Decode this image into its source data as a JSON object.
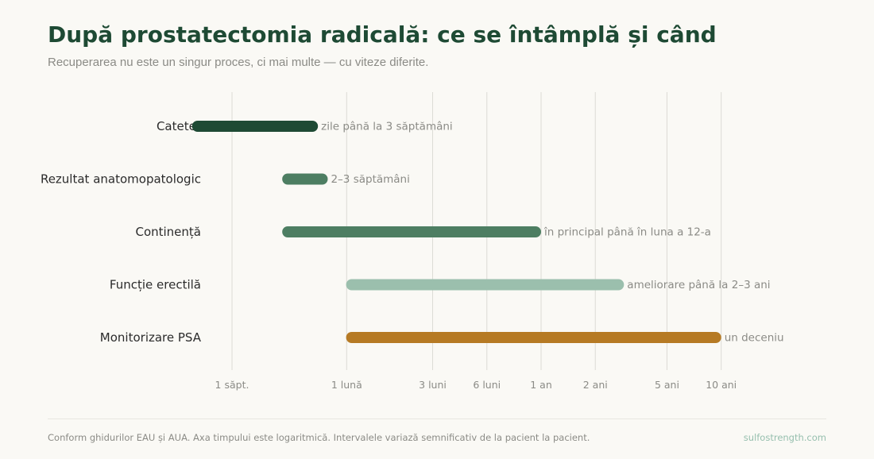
{
  "header": {
    "title": "După prostatectomia radicală: ce se întâmplă și când",
    "subtitle": "Recuperarea nu este un singur proces, ci mai multe — cu viteze diferite."
  },
  "footer": {
    "note": "Conform ghidurilor EAU și AUA. Axa timpului este logaritmică. Intervalele variază semnificativ de la pacient la pacient.",
    "brand": "sulfostrength.com"
  },
  "chart_data": {
    "type": "bar",
    "orientation": "horizontal-range",
    "x_scale": "log",
    "x_unit": "weeks",
    "xlim": [
      0.5,
      720
    ],
    "grid": true,
    "x_ticks": [
      {
        "value": 1,
        "label": "1 săpt."
      },
      {
        "value": 4.33,
        "label": "1 lună"
      },
      {
        "value": 13,
        "label": "3 luni"
      },
      {
        "value": 26,
        "label": "6 luni"
      },
      {
        "value": 52,
        "label": "1 an"
      },
      {
        "value": 104,
        "label": "2 ani"
      },
      {
        "value": 260,
        "label": "5 ani"
      },
      {
        "value": 520,
        "label": "10 ani"
      }
    ],
    "categories": [
      "Cateter",
      "Rezultat anatomopatologic",
      "Continență",
      "Funcție erectilă",
      "Monitorizare PSA"
    ],
    "ranges": [
      {
        "start": 0.6,
        "end": 3,
        "label": "zile până la 3 săptămâni",
        "color": "#1e4a34"
      },
      {
        "start": 1.9,
        "end": 3.4,
        "label": "2–3 săptămâni",
        "color": "#4d7e62"
      },
      {
        "start": 1.9,
        "end": 52,
        "label": "în principal până în luna a 12-a",
        "color": "#4d7e62"
      },
      {
        "start": 4.3,
        "end": 150,
        "label": "ameliorare până la 2–3 ani",
        "color": "#9bbfad"
      },
      {
        "start": 4.3,
        "end": 520,
        "label": "un deceniu",
        "color": "#b67a24"
      }
    ],
    "colors": {
      "grid": "#dcdbd5",
      "tick_text": "#8b8b86",
      "category_text": "#2b2b2b",
      "annotation_text": "#8b8b86"
    }
  }
}
